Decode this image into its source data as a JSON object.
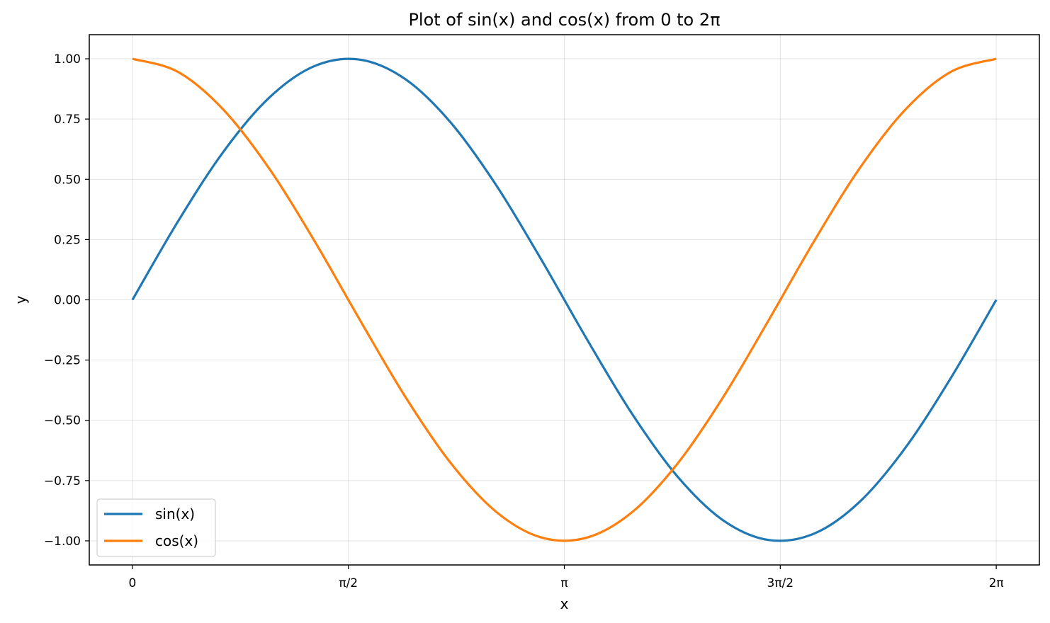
{
  "chart_data": {
    "type": "line",
    "title": "Plot of sin(x) and cos(x) from 0 to 2π",
    "xlabel": "x",
    "ylabel": "y",
    "xlim": [
      -0.314,
      6.597
    ],
    "ylim": [
      -1.1,
      1.1
    ],
    "x_ticks": [
      {
        "value": 0,
        "label": "0"
      },
      {
        "value": 1.5708,
        "label": "π/2"
      },
      {
        "value": 3.1416,
        "label": "π"
      },
      {
        "value": 4.7124,
        "label": "3π/2"
      },
      {
        "value": 6.2832,
        "label": "2π"
      }
    ],
    "y_ticks": [
      {
        "value": 1.0,
        "label": "1.00"
      },
      {
        "value": 0.75,
        "label": "0.75"
      },
      {
        "value": 0.5,
        "label": "0.50"
      },
      {
        "value": 0.25,
        "label": "0.25"
      },
      {
        "value": 0.0,
        "label": "0.00"
      },
      {
        "value": -0.25,
        "label": "−0.25"
      },
      {
        "value": -0.5,
        "label": "−0.50"
      },
      {
        "value": -0.75,
        "label": "−0.75"
      },
      {
        "value": -1.0,
        "label": "−1.00"
      }
    ],
    "grid": true,
    "legend_position": "bottom-left",
    "x": [
      0,
      0.3307,
      0.6614,
      0.9921,
      1.3228,
      1.6535,
      1.9842,
      2.3149,
      2.6456,
      2.9763,
      3.307,
      3.6377,
      3.9684,
      4.2991,
      4.6298,
      4.9605,
      5.2912,
      5.6219,
      5.9526,
      6.2832
    ],
    "series": [
      {
        "name": "sin(x)",
        "color": "#1f77b4",
        "values": [
          0,
          0.3247,
          0.6142,
          0.8372,
          0.9694,
          0.9966,
          0.9158,
          0.7357,
          0.4759,
          0.1646,
          -0.1646,
          -0.4759,
          -0.7357,
          -0.9158,
          -0.9966,
          -0.9694,
          -0.8372,
          -0.6142,
          -0.3247,
          0
        ]
      },
      {
        "name": "cos(x)",
        "color": "#ff7f0e",
        "values": [
          1,
          0.9458,
          0.7891,
          0.5469,
          0.2455,
          -0.0826,
          -0.4017,
          -0.677,
          -0.8795,
          -0.9864,
          -0.9864,
          -0.8795,
          -0.677,
          -0.4017,
          -0.0826,
          0.2455,
          0.5469,
          0.7891,
          0.9458,
          1
        ]
      }
    ]
  }
}
